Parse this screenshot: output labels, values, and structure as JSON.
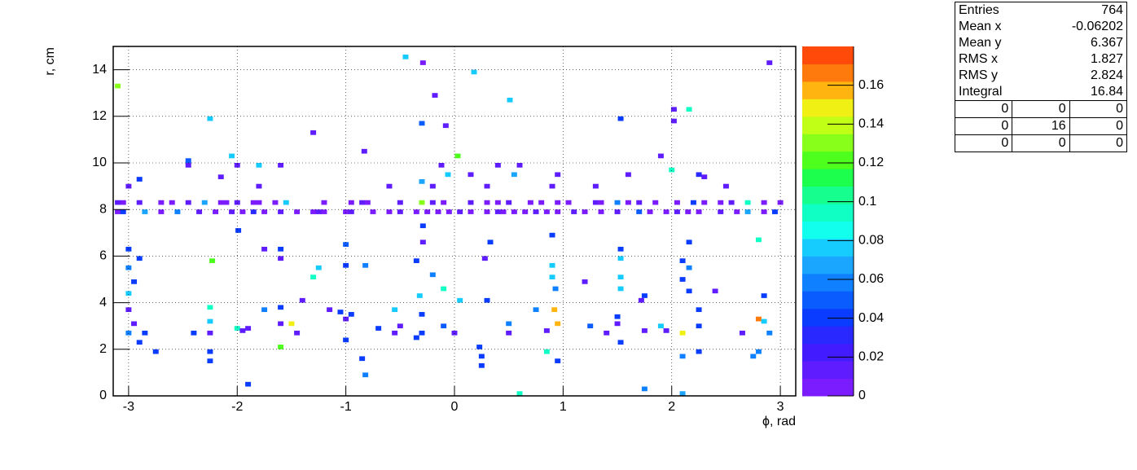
{
  "chart_data": {
    "type": "heatmap",
    "x_label": "ϕ, rad",
    "y_label": "r, cm",
    "xlim": [
      -3.1416,
      3.1416
    ],
    "ylim": [
      0,
      15
    ],
    "zlim": [
      0,
      0.18
    ],
    "xticks": [
      -3,
      -2,
      -1,
      0,
      1,
      2,
      3
    ],
    "yticks": [
      0,
      2,
      4,
      6,
      8,
      10,
      12,
      14
    ],
    "zticks": [
      0,
      0.02,
      0.04,
      0.06,
      0.08,
      0.1,
      0.12,
      0.14,
      0.16
    ],
    "grid": true,
    "palette": [
      "#7b1cff",
      "#5f1dff",
      "#421bff",
      "#2828ff",
      "#0a3cff",
      "#0a5cff",
      "#0f80ff",
      "#1aa5ff",
      "#16ccff",
      "#12ffee",
      "#10ffc4",
      "#16ff8e",
      "#1cff4c",
      "#4eff1e",
      "#88ff1a",
      "#c2ff16",
      "#f0f014",
      "#ffb40f",
      "#ff7a0c",
      "#ff4a0a"
    ],
    "cells": [
      [
        -0.45,
        14.55,
        0.08
      ],
      [
        -0.29,
        14.3,
        0.005
      ],
      [
        2.9,
        14.3,
        0.01
      ],
      [
        0.18,
        13.9,
        0.08
      ],
      [
        -3.1,
        13.3,
        0.13
      ],
      [
        -0.18,
        12.9,
        0.01
      ],
      [
        0.51,
        12.7,
        0.08
      ],
      [
        2.02,
        12.3,
        0.01
      ],
      [
        2.16,
        12.3,
        0.09
      ],
      [
        -2.25,
        11.9,
        0.08
      ],
      [
        -0.3,
        11.7,
        0.05
      ],
      [
        -0.08,
        11.6,
        0.01
      ],
      [
        1.53,
        11.9,
        0.04
      ],
      [
        2.02,
        11.8,
        0.01
      ],
      [
        -1.3,
        11.3,
        0.01
      ],
      [
        -0.83,
        10.5,
        0.01
      ],
      [
        0.03,
        10.3,
        0.12
      ],
      [
        1.9,
        10.3,
        0.01
      ],
      [
        -2.05,
        10.3,
        0.08
      ],
      [
        -2.45,
        10.1,
        0.05
      ],
      [
        -2.45,
        9.9,
        0.01
      ],
      [
        -2.0,
        9.9,
        0.01
      ],
      [
        -1.8,
        9.9,
        0.08
      ],
      [
        -1.6,
        9.9,
        0.01
      ],
      [
        -0.12,
        9.9,
        0.01
      ],
      [
        0.4,
        9.9,
        0.01
      ],
      [
        0.6,
        9.9,
        0.01
      ],
      [
        2.0,
        9.7,
        0.09
      ],
      [
        -0.06,
        9.5,
        0.08
      ],
      [
        0.15,
        9.5,
        0.01
      ],
      [
        0.55,
        9.5,
        0.07
      ],
      [
        0.95,
        9.5,
        0.01
      ],
      [
        1.6,
        9.5,
        0.01
      ],
      [
        2.25,
        9.5,
        0.03
      ],
      [
        2.3,
        9.4,
        0.01
      ],
      [
        -2.9,
        9.3,
        0.04
      ],
      [
        -2.15,
        9.4,
        0.01
      ],
      [
        -3.0,
        9.0,
        0.01
      ],
      [
        -1.8,
        9.0,
        0.01
      ],
      [
        -0.6,
        9.0,
        0.01
      ],
      [
        -0.3,
        9.2,
        0.07
      ],
      [
        -0.2,
        9.0,
        0.01
      ],
      [
        0.3,
        9.0,
        0.01
      ],
      [
        0.9,
        9.0,
        0.01
      ],
      [
        1.3,
        9.0,
        0.01
      ],
      [
        2.5,
        9.0,
        0.01
      ],
      [
        -3.1,
        7.9,
        0.005
      ],
      [
        -3.05,
        7.9,
        0.04
      ],
      [
        -2.85,
        7.9,
        0.07
      ],
      [
        -2.7,
        7.9,
        0.005
      ],
      [
        -2.55,
        7.9,
        0.06
      ],
      [
        -2.35,
        7.9,
        0.01
      ],
      [
        -2.2,
        7.9,
        0.005
      ],
      [
        -2.05,
        7.9,
        0.01
      ],
      [
        -1.95,
        7.9,
        0.005
      ],
      [
        -1.85,
        7.9,
        0.03
      ],
      [
        -1.75,
        7.9,
        0.005
      ],
      [
        -1.6,
        7.9,
        0.01
      ],
      [
        -1.45,
        7.9,
        0.005
      ],
      [
        -1.3,
        7.9,
        0.005
      ],
      [
        -1.25,
        7.9,
        0.01
      ],
      [
        -1.2,
        7.9,
        0.005
      ],
      [
        -1.0,
        7.9,
        0.005
      ],
      [
        -0.95,
        7.9,
        0.01
      ],
      [
        -0.75,
        7.9,
        0.005
      ],
      [
        -0.6,
        7.9,
        0.005
      ],
      [
        -0.5,
        7.9,
        0.01
      ],
      [
        -0.35,
        7.9,
        0.005
      ],
      [
        -0.25,
        7.9,
        0.005
      ],
      [
        -0.15,
        7.9,
        0.005
      ],
      [
        -0.05,
        7.9,
        0.005
      ],
      [
        0.05,
        7.9,
        0.01
      ],
      [
        0.15,
        7.9,
        0.005
      ],
      [
        0.3,
        7.9,
        0.005
      ],
      [
        0.4,
        7.9,
        0.01
      ],
      [
        0.45,
        7.9,
        0.005
      ],
      [
        0.55,
        7.9,
        0.005
      ],
      [
        0.65,
        7.9,
        0.005
      ],
      [
        0.75,
        7.9,
        0.01
      ],
      [
        0.85,
        7.9,
        0.005
      ],
      [
        0.95,
        7.9,
        0.005
      ],
      [
        1.1,
        7.9,
        0.01
      ],
      [
        1.2,
        7.9,
        0.005
      ],
      [
        1.35,
        7.9,
        0.005
      ],
      [
        1.5,
        7.9,
        0.01
      ],
      [
        1.7,
        7.9,
        0.05
      ],
      [
        1.8,
        7.9,
        0.005
      ],
      [
        1.95,
        7.9,
        0.005
      ],
      [
        2.05,
        7.9,
        0.01
      ],
      [
        2.15,
        7.9,
        0.005
      ],
      [
        2.25,
        7.9,
        0.005
      ],
      [
        2.45,
        7.9,
        0.01
      ],
      [
        2.6,
        7.9,
        0.005
      ],
      [
        2.7,
        7.9,
        0.07
      ],
      [
        2.85,
        7.9,
        0.005
      ],
      [
        2.95,
        7.9,
        0.04
      ],
      [
        -3.1,
        8.3,
        0.01
      ],
      [
        -3.05,
        8.3,
        0.005
      ],
      [
        -2.9,
        8.3,
        0.01
      ],
      [
        -2.7,
        8.3,
        0.005
      ],
      [
        -2.6,
        8.3,
        0.005
      ],
      [
        -2.45,
        8.3,
        0.01
      ],
      [
        -2.3,
        8.3,
        0.07
      ],
      [
        -2.15,
        8.3,
        0.005
      ],
      [
        -2.1,
        8.3,
        0.005
      ],
      [
        -2.0,
        8.3,
        0.01
      ],
      [
        -1.85,
        8.3,
        0.005
      ],
      [
        -1.8,
        8.3,
        0.005
      ],
      [
        -1.65,
        8.3,
        0.005
      ],
      [
        -1.55,
        8.3,
        0.08
      ],
      [
        -1.2,
        8.3,
        0.005
      ],
      [
        -0.95,
        8.3,
        0.005
      ],
      [
        -0.85,
        8.3,
        0.01
      ],
      [
        -0.8,
        8.3,
        0.005
      ],
      [
        -0.5,
        8.3,
        0.01
      ],
      [
        -0.3,
        8.3,
        0.13
      ],
      [
        -0.2,
        8.3,
        0.01
      ],
      [
        -0.1,
        8.3,
        0.005
      ],
      [
        0.15,
        8.3,
        0.01
      ],
      [
        0.3,
        8.3,
        0.005
      ],
      [
        0.4,
        8.3,
        0.005
      ],
      [
        0.5,
        8.3,
        0.01
      ],
      [
        0.7,
        8.3,
        0.005
      ],
      [
        0.8,
        8.3,
        0.005
      ],
      [
        0.95,
        8.3,
        0.005
      ],
      [
        1.05,
        8.3,
        0.005
      ],
      [
        1.3,
        8.3,
        0.01
      ],
      [
        1.35,
        8.3,
        0.005
      ],
      [
        1.5,
        8.3,
        0.06
      ],
      [
        1.6,
        8.3,
        0.005
      ],
      [
        1.7,
        8.3,
        0.01
      ],
      [
        1.85,
        8.3,
        0.005
      ],
      [
        2.05,
        8.3,
        0.005
      ],
      [
        2.2,
        8.3,
        0.04
      ],
      [
        2.3,
        8.3,
        0.005
      ],
      [
        2.45,
        8.3,
        0.005
      ],
      [
        2.55,
        8.3,
        0.01
      ],
      [
        2.7,
        8.3,
        0.09
      ],
      [
        2.85,
        8.3,
        0.005
      ],
      [
        3.0,
        8.3,
        0.005
      ],
      [
        -1.99,
        7.1,
        0.04
      ],
      [
        -1.75,
        6.3,
        0.01
      ],
      [
        -1.6,
        6.3,
        0.04
      ],
      [
        -1.0,
        6.5,
        0.05
      ],
      [
        -0.29,
        7.3,
        0.04
      ],
      [
        -0.29,
        6.6,
        0.01
      ],
      [
        0.33,
        6.6,
        0.04
      ],
      [
        0.9,
        6.9,
        0.04
      ],
      [
        1.53,
        6.3,
        0.04
      ],
      [
        2.16,
        6.6,
        0.04
      ],
      [
        2.8,
        6.7,
        0.09
      ],
      [
        -3.0,
        6.3,
        0.04
      ],
      [
        -1.6,
        5.9,
        0.01
      ],
      [
        -2.9,
        5.9,
        0.04
      ],
      [
        -2.23,
        5.8,
        0.12
      ],
      [
        -3.0,
        5.5,
        0.06
      ],
      [
        -1.0,
        5.6,
        0.04
      ],
      [
        -0.82,
        5.6,
        0.06
      ],
      [
        -0.35,
        5.8,
        0.04
      ],
      [
        0.28,
        5.9,
        0.01
      ],
      [
        0.9,
        5.6,
        0.08
      ],
      [
        1.53,
        5.9,
        0.08
      ],
      [
        2.1,
        5.8,
        0.04
      ],
      [
        2.16,
        5.5,
        0.06
      ],
      [
        -1.25,
        5.5,
        0.08
      ],
      [
        -1.3,
        5.1,
        0.09
      ],
      [
        -2.95,
        4.9,
        0.04
      ],
      [
        -0.2,
        5.2,
        0.06
      ],
      [
        0.9,
        5.1,
        0.08
      ],
      [
        1.2,
        4.9,
        0.01
      ],
      [
        1.53,
        5.1,
        0.08
      ],
      [
        2.1,
        5.0,
        0.04
      ],
      [
        -3.0,
        4.4,
        0.08
      ],
      [
        -0.1,
        4.6,
        0.09
      ],
      [
        0.93,
        4.6,
        0.06
      ],
      [
        1.53,
        4.6,
        0.08
      ],
      [
        2.16,
        4.5,
        0.04
      ],
      [
        2.4,
        4.5,
        0.01
      ],
      [
        -0.32,
        4.3,
        0.08
      ],
      [
        0.05,
        4.1,
        0.08
      ],
      [
        0.3,
        4.1,
        0.04
      ],
      [
        1.75,
        4.3,
        0.04
      ],
      [
        1.72,
        4.1,
        0.01
      ],
      [
        2.85,
        4.3,
        0.04
      ],
      [
        -1.4,
        4.1,
        0.01
      ],
      [
        -3.0,
        3.7,
        0.01
      ],
      [
        -2.25,
        3.8,
        0.09
      ],
      [
        -1.75,
        3.7,
        0.06
      ],
      [
        -1.6,
        3.8,
        0.04
      ],
      [
        -1.15,
        3.7,
        0.01
      ],
      [
        -1.05,
        3.6,
        0.04
      ],
      [
        -0.95,
        3.5,
        0.04
      ],
      [
        -0.55,
        3.7,
        0.08
      ],
      [
        -0.3,
        3.5,
        0.04
      ],
      [
        0.75,
        3.7,
        0.06
      ],
      [
        0.92,
        3.7,
        0.16
      ],
      [
        1.5,
        3.4,
        0.04
      ],
      [
        2.25,
        3.7,
        0.04
      ],
      [
        -2.95,
        3.1,
        0.01
      ],
      [
        -2.25,
        3.2,
        0.08
      ],
      [
        -2.0,
        2.9,
        0.09
      ],
      [
        -1.9,
        2.9,
        0.01
      ],
      [
        -1.6,
        3.1,
        0.01
      ],
      [
        -1.5,
        3.1,
        0.15
      ],
      [
        -1.0,
        3.3,
        0.01
      ],
      [
        -0.7,
        2.9,
        0.04
      ],
      [
        -0.5,
        3.0,
        0.01
      ],
      [
        -0.1,
        3.0,
        0.05
      ],
      [
        0.5,
        3.1,
        0.06
      ],
      [
        0.95,
        3.1,
        0.16
      ],
      [
        1.25,
        3.0,
        0.05
      ],
      [
        1.5,
        3.1,
        0.01
      ],
      [
        1.9,
        3.0,
        0.08
      ],
      [
        2.25,
        3.0,
        0.04
      ],
      [
        2.8,
        3.3,
        0.17
      ],
      [
        2.85,
        3.2,
        0.08
      ],
      [
        -3.0,
        2.7,
        0.06
      ],
      [
        -2.85,
        2.7,
        0.04
      ],
      [
        -2.4,
        2.7,
        0.04
      ],
      [
        -2.25,
        2.7,
        0.01
      ],
      [
        -1.95,
        2.8,
        0.01
      ],
      [
        -1.45,
        2.7,
        0.01
      ],
      [
        -0.55,
        2.7,
        0.01
      ],
      [
        -0.3,
        2.7,
        0.04
      ],
      [
        0.0,
        2.7,
        0.01
      ],
      [
        0.5,
        2.7,
        0.01
      ],
      [
        0.85,
        2.8,
        0.01
      ],
      [
        1.4,
        2.7,
        0.01
      ],
      [
        1.75,
        2.8,
        0.01
      ],
      [
        1.95,
        2.8,
        0.01
      ],
      [
        2.1,
        2.7,
        0.15
      ],
      [
        2.65,
        2.7,
        0.01
      ],
      [
        2.9,
        2.7,
        0.06
      ],
      [
        -2.9,
        2.3,
        0.04
      ],
      [
        -1.0,
        2.4,
        0.04
      ],
      [
        -0.35,
        2.5,
        0.04
      ],
      [
        0.23,
        2.1,
        0.04
      ],
      [
        1.53,
        2.3,
        0.04
      ],
      [
        -1.6,
        2.1,
        0.12
      ],
      [
        -2.75,
        1.9,
        0.04
      ],
      [
        -2.25,
        1.9,
        0.04
      ],
      [
        -0.85,
        1.6,
        0.04
      ],
      [
        0.25,
        1.7,
        0.04
      ],
      [
        0.85,
        1.9,
        0.09
      ],
      [
        0.95,
        1.5,
        0.04
      ],
      [
        2.1,
        1.7,
        0.06
      ],
      [
        2.25,
        1.9,
        0.04
      ],
      [
        2.75,
        1.7,
        0.06
      ],
      [
        2.8,
        1.9,
        0.06
      ],
      [
        -2.25,
        1.5,
        0.04
      ],
      [
        0.25,
        1.3,
        0.04
      ],
      [
        -0.82,
        0.9,
        0.06
      ],
      [
        -1.9,
        0.5,
        0.04
      ],
      [
        1.75,
        0.3,
        0.06
      ],
      [
        0.6,
        0.1,
        0.09
      ],
      [
        2.1,
        0.1,
        0.07
      ]
    ]
  },
  "stats_box": {
    "rows": [
      [
        "Entries",
        "764"
      ],
      [
        "Mean x",
        "-0.06202"
      ],
      [
        "Mean y",
        "6.367"
      ],
      [
        "RMS x",
        "1.827"
      ],
      [
        "RMS y",
        "2.824"
      ],
      [
        "Integral",
        "16.84"
      ]
    ],
    "grid": [
      [
        "0",
        "0",
        "0"
      ],
      [
        "0",
        "16",
        "0"
      ],
      [
        "0",
        "0",
        "0"
      ]
    ]
  }
}
